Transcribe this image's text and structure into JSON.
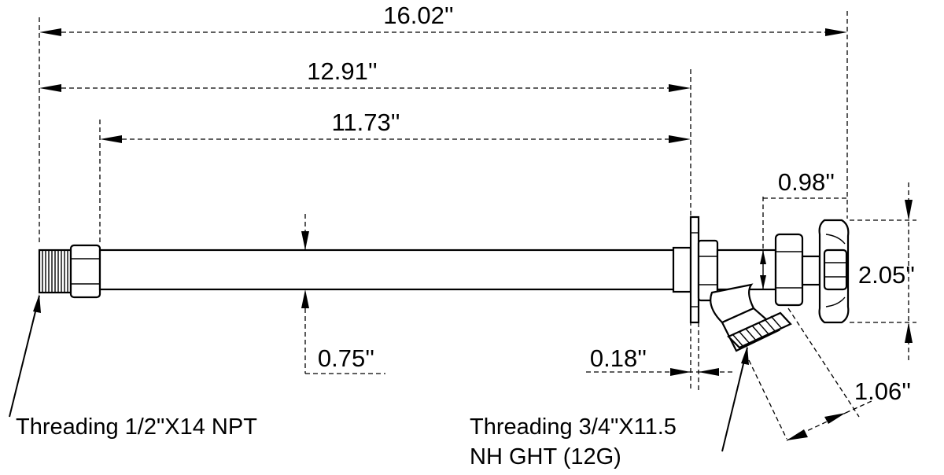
{
  "dimensions": {
    "overall_length": "16.02''",
    "flange_length": "12.91''",
    "tube_length": "11.73''",
    "tube_diameter": "0.75''",
    "flange_thickness": "0.18''",
    "handle_offset": "0.98''",
    "handle_height": "2.05''",
    "outlet_length": "1.06''"
  },
  "notes": {
    "inlet_thread": "Threading 1/2\"X14 NPT",
    "outlet_thread_line1": "Threading 3/4\"X11.5",
    "outlet_thread_line2": "NH GHT (12G)"
  }
}
